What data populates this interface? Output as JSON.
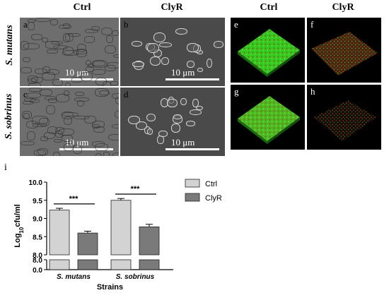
{
  "headers": {
    "sem_ctrl": "Ctrl",
    "sem_clyr": "ClyR",
    "conf_ctrl": "Ctrl",
    "conf_clyr": "ClyR"
  },
  "row_labels": {
    "row1": "S. mutans",
    "row2": "S. sobrinus"
  },
  "panels": {
    "a": "a",
    "b": "b",
    "c": "c",
    "d": "d",
    "e": "e",
    "f": "f",
    "g": "g",
    "h": "h",
    "i": "i"
  },
  "scale_bar": "10 μm",
  "colors": {
    "ctrl_bar": "#d3d3d3",
    "clyr_bar": "#7a7a7a",
    "live_green": "#2ecc1e",
    "dead_red": "#d22020"
  },
  "chart_data": {
    "type": "bar",
    "categories": [
      "S. mutans",
      "S. sobrinus"
    ],
    "series": [
      {
        "name": "Ctrl",
        "values": [
          9.23,
          9.5
        ],
        "errors": [
          0.05,
          0.05
        ]
      },
      {
        "name": "ClyR",
        "values": [
          8.6,
          8.77
        ],
        "errors": [
          0.05,
          0.07
        ]
      }
    ],
    "significance": [
      "***",
      "***"
    ],
    "xlabel": "Strains",
    "ylabel": "Log10cfu/ml",
    "ylim": [
      8.0,
      10.0
    ],
    "axis_break": true,
    "yticks": [
      "8.0",
      "8.5",
      "9.0",
      "9.5",
      "10.0"
    ],
    "yticks_lower": [
      "8.0",
      "0.0"
    ],
    "legend_position": "top-right",
    "grid": false
  }
}
